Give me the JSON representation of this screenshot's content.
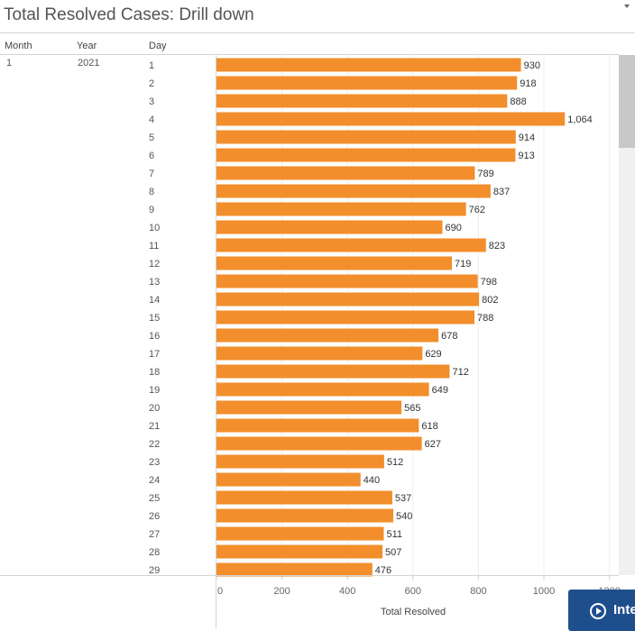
{
  "title": "Total Resolved Cases: Drill down",
  "headers": {
    "month": "Month",
    "year": "Year",
    "day": "Day"
  },
  "row_labels": {
    "month": "1",
    "year": "2021"
  },
  "button": {
    "label": "Inte"
  },
  "colors": {
    "bar": "#f28e2b"
  },
  "chart_data": {
    "type": "bar",
    "orientation": "horizontal",
    "categories": [
      "1",
      "2",
      "3",
      "4",
      "5",
      "6",
      "7",
      "8",
      "9",
      "10",
      "11",
      "12",
      "13",
      "14",
      "15",
      "16",
      "17",
      "18",
      "19",
      "20",
      "21",
      "22",
      "23",
      "24",
      "25",
      "26",
      "27",
      "28",
      "29"
    ],
    "values": [
      930,
      918,
      888,
      1064,
      914,
      913,
      789,
      837,
      762,
      690,
      823,
      719,
      798,
      802,
      788,
      678,
      629,
      712,
      649,
      565,
      618,
      627,
      512,
      440,
      537,
      540,
      511,
      507,
      476
    ],
    "value_labels": [
      "930",
      "918",
      "888",
      "1,064",
      "914",
      "913",
      "789",
      "837",
      "762",
      "690",
      "823",
      "719",
      "798",
      "802",
      "788",
      "678",
      "629",
      "712",
      "649",
      "565",
      "618",
      "627",
      "512",
      "440",
      "537",
      "540",
      "511",
      "507",
      "476"
    ],
    "xlabel": "Total Resolved",
    "xlim": [
      0,
      1200
    ],
    "xticks": [
      "0",
      "200",
      "400",
      "600",
      "800",
      "1000",
      "1200"
    ],
    "grid": true
  }
}
